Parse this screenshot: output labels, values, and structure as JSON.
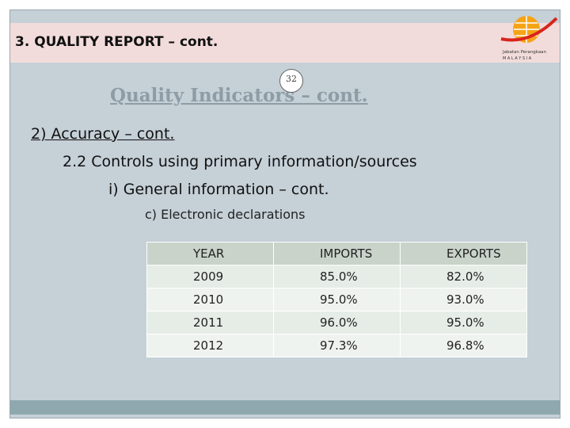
{
  "header": {
    "title": "3. QUALITY REPORT – cont.",
    "logo_name": "Jabatan Perangkaan",
    "logo_country": "M A L A Y S I A"
  },
  "page_number": "32",
  "subtitle": "Quality Indicators – cont.",
  "outline": [
    "2) Accuracy – cont.",
    "2.2 Controls using primary information/sources",
    "i) General information – cont.",
    "c) Electronic declarations"
  ],
  "table": {
    "columns": [
      "YEAR",
      "IMPORTS",
      "EXPORTS"
    ],
    "rows": [
      [
        "2009",
        "85.0%",
        "82.0%"
      ],
      [
        "2010",
        "95.0%",
        "93.0%"
      ],
      [
        "2011",
        "96.0%",
        "95.0%"
      ],
      [
        "2012",
        "97.3%",
        "96.8%"
      ]
    ]
  }
}
